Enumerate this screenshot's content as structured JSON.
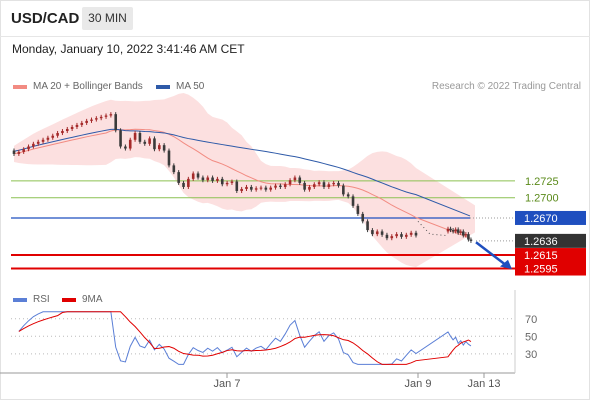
{
  "header": {
    "symbol": "USD/CAD",
    "timeframe": "30 MIN"
  },
  "timestamp": "Monday, January 10, 2022 3:41:46 AM CET",
  "credit": "Research © 2022 Trading Central",
  "legend": {
    "price": [
      {
        "label": "MA 20 + Bollinger Bands",
        "color": "#f28b82"
      },
      {
        "label": "MA 50",
        "color": "#2e5aa8"
      }
    ],
    "indicator": [
      {
        "label": "RSI",
        "color": "#5b7fd6"
      },
      {
        "label": "9MA",
        "color": "#e00000"
      }
    ]
  },
  "colors": {
    "up": "#a52a2a",
    "down": "#3a3a3a",
    "support": "#e00000",
    "resistance": "#8cc152",
    "pivot": "#1f4fbf",
    "current": "#333333"
  },
  "chart_data": {
    "type": "candlestick",
    "y_range": [
      1.2575,
      1.2845
    ],
    "x_ticks": [
      "Jan 7",
      "Jan 9",
      "Jan 13"
    ],
    "levels": [
      {
        "value": 1.2725,
        "label": "1.2725",
        "kind": "resistance"
      },
      {
        "value": 1.27,
        "label": "1.2700",
        "kind": "resistance"
      },
      {
        "value": 1.267,
        "label": "1.2670",
        "kind": "pivot"
      },
      {
        "value": 1.2636,
        "label": "1.2636",
        "kind": "current"
      },
      {
        "value": 1.2615,
        "label": "1.2615",
        "kind": "support"
      },
      {
        "value": 1.2595,
        "label": "1.2595",
        "kind": "support"
      }
    ],
    "candles": [
      [
        1.277,
        1.2765
      ],
      [
        1.2765,
        1.2768
      ],
      [
        1.2768,
        1.2772
      ],
      [
        1.2772,
        1.2776
      ],
      [
        1.2776,
        1.278
      ],
      [
        1.278,
        1.2783
      ],
      [
        1.2783,
        1.2786
      ],
      [
        1.2786,
        1.2789
      ],
      [
        1.2789,
        1.2792
      ],
      [
        1.2792,
        1.2796
      ],
      [
        1.2796,
        1.2799
      ],
      [
        1.2799,
        1.2802
      ],
      [
        1.2802,
        1.2805
      ],
      [
        1.2805,
        1.2808
      ],
      [
        1.2808,
        1.2811
      ],
      [
        1.2811,
        1.2814
      ],
      [
        1.2814,
        1.2816
      ],
      [
        1.2816,
        1.2818
      ],
      [
        1.2818,
        1.282
      ],
      [
        1.282,
        1.2822
      ],
      [
        1.2822,
        1.2824
      ],
      [
        1.2824,
        1.28
      ],
      [
        1.28,
        1.2776
      ],
      [
        1.2776,
        1.2773
      ],
      [
        1.2773,
        1.2786
      ],
      [
        1.2786,
        1.2796
      ],
      [
        1.2796,
        1.2783
      ],
      [
        1.2783,
        1.278
      ],
      [
        1.278,
        1.2788
      ],
      [
        1.2788,
        1.2772
      ],
      [
        1.2772,
        1.2778
      ],
      [
        1.2778,
        1.277
      ],
      [
        1.277,
        1.2748
      ],
      [
        1.2748,
        1.2738
      ],
      [
        1.2738,
        1.2722
      ],
      [
        1.2722,
        1.2716
      ],
      [
        1.2716,
        1.2728
      ],
      [
        1.2728,
        1.2736
      ],
      [
        1.2736,
        1.273
      ],
      [
        1.273,
        1.2726
      ],
      [
        1.2726,
        1.273
      ],
      [
        1.273,
        1.2725
      ],
      [
        1.2725,
        1.2728
      ],
      [
        1.2728,
        1.272
      ],
      [
        1.272,
        1.2722
      ],
      [
        1.2722,
        1.2724
      ],
      [
        1.2724,
        1.271
      ],
      [
        1.271,
        1.2713
      ],
      [
        1.2713,
        1.2716
      ],
      [
        1.2716,
        1.2712
      ],
      [
        1.2712,
        1.2714
      ],
      [
        1.2714,
        1.2715
      ],
      [
        1.2715,
        1.2712
      ],
      [
        1.2712,
        1.2715
      ],
      [
        1.2715,
        1.2718
      ],
      [
        1.2718,
        1.2716
      ],
      [
        1.2716,
        1.272
      ],
      [
        1.272,
        1.2726
      ],
      [
        1.2726,
        1.273
      ],
      [
        1.273,
        1.2722
      ],
      [
        1.2722,
        1.2712
      ],
      [
        1.2712,
        1.2716
      ],
      [
        1.2716,
        1.272
      ],
      [
        1.272,
        1.2723
      ],
      [
        1.2723,
        1.2716
      ],
      [
        1.2716,
        1.272
      ],
      [
        1.272,
        1.2722
      ],
      [
        1.2722,
        1.2718
      ],
      [
        1.2718,
        1.2705
      ],
      [
        1.2705,
        1.2702
      ],
      [
        1.2702,
        1.2688
      ],
      [
        1.2688,
        1.2676
      ],
      [
        1.2676,
        1.2665
      ],
      [
        1.2665,
        1.2652
      ],
      [
        1.2652,
        1.2646
      ],
      [
        1.2646,
        1.265
      ],
      [
        1.265,
        1.2645
      ],
      [
        1.2645,
        1.264
      ],
      [
        1.264,
        1.2643
      ],
      [
        1.2643,
        1.2646
      ],
      [
        1.2646,
        1.2642
      ],
      [
        1.2642,
        1.2645
      ],
      [
        1.2645,
        1.2648
      ],
      [
        1.2648,
        1.2644
      ]
    ],
    "candles_tail": [
      [
        1.265,
        1.2654
      ],
      [
        1.2654,
        1.2652
      ],
      [
        1.2652,
        1.265
      ],
      [
        1.265,
        1.2653
      ],
      [
        1.2653,
        1.2648
      ],
      [
        1.2648,
        1.265
      ],
      [
        1.265,
        1.2644
      ],
      [
        1.2644,
        1.2646
      ],
      [
        1.2646,
        1.2638
      ],
      [
        1.2638,
        1.2636
      ]
    ],
    "rsi": {
      "levels": [
        70,
        50,
        30
      ],
      "y_range": [
        15,
        80
      ]
    }
  }
}
